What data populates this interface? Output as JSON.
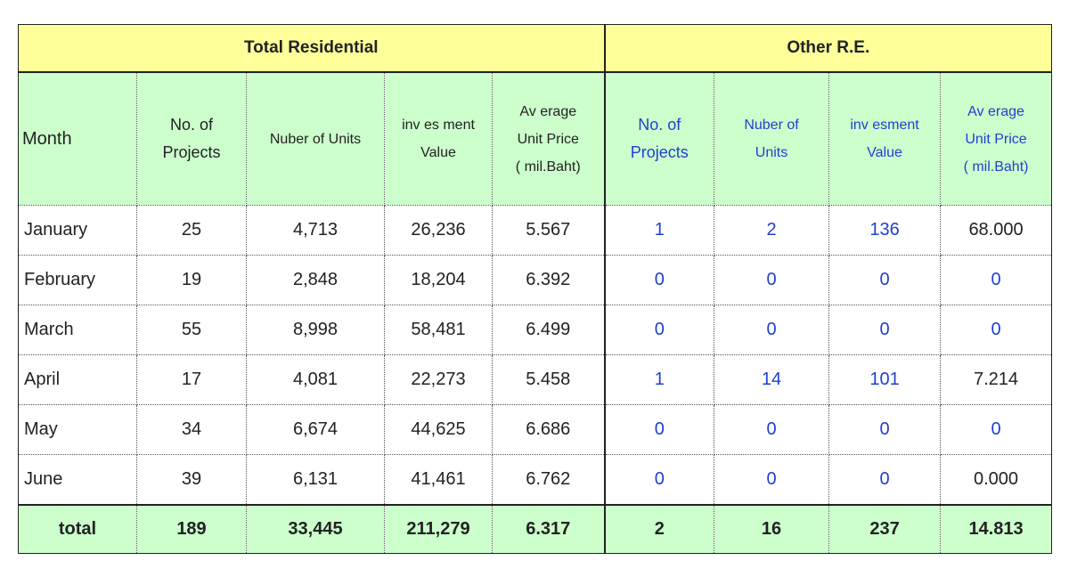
{
  "groups": {
    "total_residential": "Total Residential",
    "other_re": "Other R.E."
  },
  "headers": {
    "month": "Month",
    "no_projects_l1": "No. of",
    "no_projects_l2": "Projects",
    "units": "Nuber of Units",
    "invest_l1": "inv es ment",
    "invest_l2": "Value",
    "avg_l1": "Av erage",
    "avg_l2": "Unit Price",
    "avg_l3": "( mil.Baht)",
    "o_no_projects_l1": "No. of",
    "o_no_projects_l2": "Projects",
    "o_units_l1": "Nuber of",
    "o_units_l2": "Units",
    "o_invest_l1": "inv esment",
    "o_invest_l2": "Value",
    "o_avg_l1": "Av erage",
    "o_avg_l2": "Unit Price",
    "o_avg_l3": "( mil.Baht)"
  },
  "rows": [
    {
      "month": "January",
      "projects": "25",
      "units": "4,713",
      "invest": "26,236",
      "avg": "5.567",
      "o_projects": "1",
      "o_units": "2",
      "o_invest": "136",
      "o_avg": "68.000"
    },
    {
      "month": "February",
      "projects": "19",
      "units": "2,848",
      "invest": "18,204",
      "avg": "6.392",
      "o_projects": "0",
      "o_units": "0",
      "o_invest": "0",
      "o_avg": "0"
    },
    {
      "month": "March",
      "projects": "55",
      "units": "8,998",
      "invest": "58,481",
      "avg": "6.499",
      "o_projects": "0",
      "o_units": "0",
      "o_invest": "0",
      "o_avg": "0"
    },
    {
      "month": "April",
      "projects": "17",
      "units": "4,081",
      "invest": "22,273",
      "avg": "5.458",
      "o_projects": "1",
      "o_units": "14",
      "o_invest": "101",
      "o_avg": "7.214"
    },
    {
      "month": "May",
      "projects": "34",
      "units": "6,674",
      "invest": "44,625",
      "avg": "6.686",
      "o_projects": "0",
      "o_units": "0",
      "o_invest": "0",
      "o_avg": "0"
    },
    {
      "month": "June",
      "projects": "39",
      "units": "6,131",
      "invest": "41,461",
      "avg": "6.762",
      "o_projects": "0",
      "o_units": "0",
      "o_invest": "0",
      "o_avg": "0.000"
    }
  ],
  "total": {
    "label": "total",
    "projects": "189",
    "units": "33,445",
    "invest": "211,279",
    "avg": "6.317",
    "o_projects": "2",
    "o_units": "16",
    "o_invest": "237",
    "o_avg": "14.813"
  }
}
